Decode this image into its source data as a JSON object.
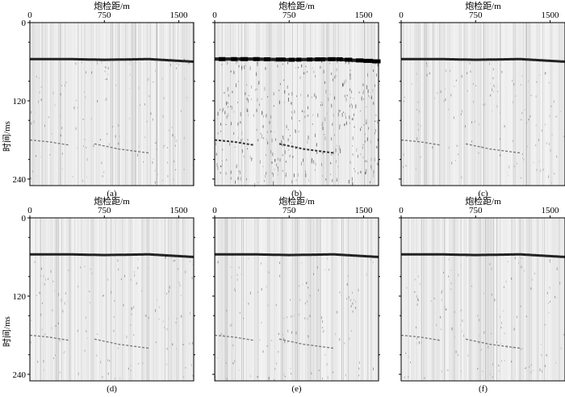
{
  "figure": {
    "x_axis_title": "炮检距/m",
    "y_axis_title": "时间/ms",
    "x_ticks": [
      "0",
      "750",
      "1500"
    ],
    "y_ticks": [
      "0",
      "120",
      "240"
    ],
    "panels": [
      {
        "label": "(a)",
        "noise": "low"
      },
      {
        "label": "(b)",
        "noise": "high"
      },
      {
        "label": "(c)",
        "noise": "low"
      },
      {
        "label": "(d)",
        "noise": "low"
      },
      {
        "label": "(e)",
        "noise": "low"
      },
      {
        "label": "(f)",
        "noise": "low"
      }
    ]
  },
  "chart_data": {
    "type": "heatmap",
    "x": {
      "label": "炮检距/m",
      "range": [
        0,
        1650
      ],
      "ticks": [
        0,
        750,
        1500
      ]
    },
    "y": {
      "label": "时间/ms",
      "range": [
        0,
        250
      ],
      "ticks": [
        0,
        120,
        240
      ],
      "inverted": true
    },
    "panels": [
      "(a)",
      "(b)",
      "(c)",
      "(d)",
      "(e)",
      "(f)"
    ],
    "events": {
      "first_arrival_ms": [
        [
          0,
          56
        ],
        [
          400,
          56
        ],
        [
          750,
          57
        ],
        [
          1200,
          56
        ],
        [
          1650,
          60
        ]
      ],
      "reflection_1_ms": [
        [
          0,
          180
        ],
        [
          200,
          183
        ],
        [
          400,
          188
        ]
      ],
      "reflection_2_ms": [
        [
          650,
          186
        ],
        [
          900,
          194
        ],
        [
          1200,
          200
        ]
      ]
    }
  }
}
